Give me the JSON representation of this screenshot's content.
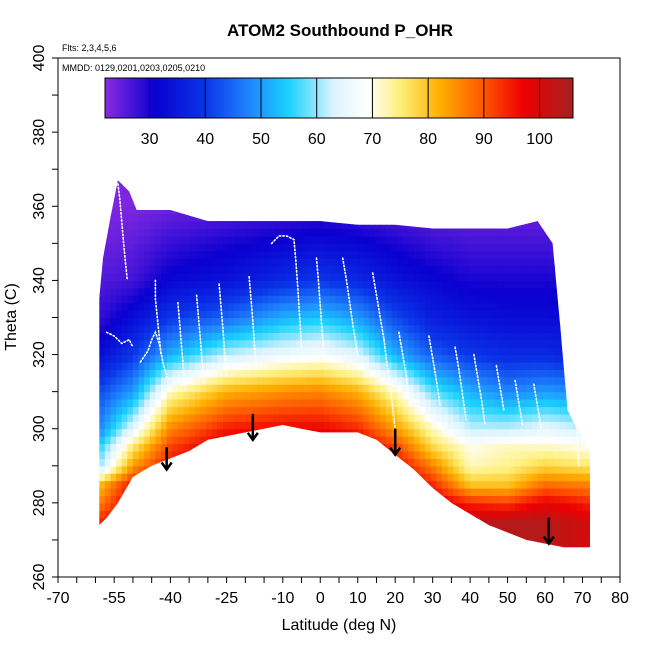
{
  "chart_data": {
    "type": "heatmap",
    "title": "ATOM2 Southbound P_OHR",
    "flights_label": "Flts: 2,3,4,5,6",
    "dates_label": "MMDD: 0129,0201,0203,0205,0210",
    "xlabel": "Latitude (deg N)",
    "ylabel": "Theta (C)",
    "xlim": [
      -70,
      80
    ],
    "ylim": [
      260,
      400
    ],
    "x_tick_labels": [
      -70,
      -55,
      -40,
      -25,
      -10,
      0,
      10,
      20,
      30,
      40,
      50,
      60,
      70,
      80
    ],
    "y_tick_labels": [
      260,
      280,
      300,
      320,
      340,
      360,
      380,
      400
    ],
    "colorbar": {
      "min": 22,
      "max": 106,
      "tick_labels": [
        30,
        40,
        50,
        60,
        70,
        80,
        90,
        100
      ],
      "stops": [
        {
          "value": 22,
          "color": "#8a2be2"
        },
        {
          "value": 31,
          "color": "#0a00d0"
        },
        {
          "value": 40,
          "color": "#0a35e8"
        },
        {
          "value": 48,
          "color": "#1f86ff"
        },
        {
          "value": 55,
          "color": "#1ad2ff"
        },
        {
          "value": 63,
          "color": "#dcf3ff"
        },
        {
          "value": 69,
          "color": "#ffffff"
        },
        {
          "value": 75,
          "color": "#fff07a"
        },
        {
          "value": 82,
          "color": "#ffb000"
        },
        {
          "value": 90,
          "color": "#ff5500"
        },
        {
          "value": 97,
          "color": "#ee0000"
        },
        {
          "value": 106,
          "color": "#a52020"
        }
      ]
    },
    "field": {
      "lat_range": [
        -59,
        72
      ],
      "top_boundary": [
        [
          -59,
          335
        ],
        [
          -58,
          346
        ],
        [
          -56,
          357
        ],
        [
          -54,
          367
        ],
        [
          -51,
          364
        ],
        [
          -49,
          359
        ],
        [
          -40,
          359
        ],
        [
          -30,
          356
        ],
        [
          -20,
          356
        ],
        [
          -10,
          356
        ],
        [
          0,
          356
        ],
        [
          10,
          355
        ],
        [
          20,
          355
        ],
        [
          30,
          354
        ],
        [
          40,
          354
        ],
        [
          50,
          354
        ],
        [
          58,
          356
        ],
        [
          62,
          350
        ],
        [
          64,
          328
        ],
        [
          66,
          305
        ],
        [
          70,
          297
        ],
        [
          72,
          294
        ]
      ],
      "bottom_boundary": [
        [
          -59,
          274
        ],
        [
          -57,
          276
        ],
        [
          -54,
          280
        ],
        [
          -50,
          287
        ],
        [
          -45,
          290
        ],
        [
          -40,
          292
        ],
        [
          -35,
          294
        ],
        [
          -30,
          297
        ],
        [
          -20,
          299
        ],
        [
          -10,
          301
        ],
        [
          -5,
          300
        ],
        [
          0,
          299
        ],
        [
          10,
          299
        ],
        [
          15,
          297
        ],
        [
          20,
          293
        ],
        [
          25,
          289
        ],
        [
          30,
          284
        ],
        [
          35,
          280
        ],
        [
          40,
          277
        ],
        [
          45,
          274
        ],
        [
          50,
          272
        ],
        [
          55,
          270
        ],
        [
          60,
          269
        ],
        [
          65,
          268
        ],
        [
          72,
          268
        ]
      ],
      "profiles": [
        {
          "lat": -59,
          "theta": [
            275,
            280,
            285,
            290,
            295,
            300,
            310,
            320,
            330,
            340,
            350,
            360,
            370
          ],
          "value": [
            94,
            86,
            80,
            60,
            55,
            48,
            42,
            33,
            28,
            26,
            24,
            23,
            23
          ]
        },
        {
          "lat": -50,
          "theta": [
            275,
            280,
            285,
            290,
            295,
            300,
            310,
            320,
            330,
            340,
            350,
            360,
            370
          ],
          "value": [
            100,
            100,
            96,
            84,
            76,
            65,
            50,
            40,
            33,
            27,
            25,
            23,
            23
          ]
        },
        {
          "lat": -40,
          "theta": [
            275,
            280,
            285,
            290,
            295,
            300,
            310,
            320,
            330,
            340,
            350,
            360,
            370
          ],
          "value": [
            104,
            104,
            100,
            96,
            92,
            86,
            72,
            52,
            40,
            32,
            28,
            24,
            23
          ]
        },
        {
          "lat": -25,
          "theta": [
            275,
            280,
            285,
            290,
            295,
            300,
            310,
            320,
            330,
            340,
            350,
            360,
            370
          ],
          "value": [
            104,
            104,
            104,
            102,
            100,
            95,
            82,
            62,
            45,
            34,
            30,
            25,
            23
          ]
        },
        {
          "lat": -10,
          "theta": [
            275,
            280,
            285,
            290,
            295,
            300,
            310,
            320,
            330,
            340,
            350,
            360,
            370
          ],
          "value": [
            104,
            104,
            104,
            104,
            102,
            97,
            85,
            66,
            52,
            38,
            32,
            26,
            23
          ]
        },
        {
          "lat": 0,
          "theta": [
            275,
            280,
            285,
            290,
            295,
            300,
            310,
            320,
            330,
            340,
            350,
            360,
            370
          ],
          "value": [
            104,
            104,
            104,
            104,
            102,
            97,
            86,
            68,
            54,
            40,
            33,
            27,
            23
          ]
        },
        {
          "lat": 10,
          "theta": [
            275,
            280,
            285,
            290,
            295,
            300,
            310,
            320,
            330,
            340,
            350,
            360,
            370
          ],
          "value": [
            104,
            104,
            104,
            103,
            100,
            94,
            82,
            64,
            50,
            38,
            32,
            26,
            23
          ]
        },
        {
          "lat": 20,
          "theta": [
            275,
            280,
            285,
            290,
            295,
            300,
            310,
            320,
            330,
            340,
            350,
            360,
            370
          ],
          "value": [
            104,
            104,
            102,
            98,
            92,
            84,
            72,
            52,
            42,
            34,
            30,
            25,
            23
          ]
        },
        {
          "lat": 30,
          "theta": [
            275,
            280,
            285,
            290,
            295,
            300,
            310,
            320,
            330,
            340,
            350,
            360,
            370
          ],
          "value": [
            104,
            100,
            94,
            86,
            78,
            72,
            58,
            44,
            36,
            32,
            28,
            24,
            23
          ]
        },
        {
          "lat": 40,
          "theta": [
            275,
            280,
            285,
            290,
            295,
            300,
            310,
            320,
            330,
            340,
            350,
            360,
            370
          ],
          "value": [
            102,
            94,
            80,
            72,
            70,
            62,
            52,
            40,
            34,
            30,
            27,
            24,
            23
          ]
        },
        {
          "lat": 50,
          "theta": [
            275,
            280,
            285,
            290,
            295,
            300,
            310,
            320,
            330,
            340,
            350,
            360,
            370
          ],
          "value": [
            104,
            92,
            80,
            74,
            72,
            62,
            48,
            38,
            33,
            30,
            27,
            24,
            23
          ]
        },
        {
          "lat": 60,
          "theta": [
            275,
            280,
            285,
            290,
            295,
            300,
            310,
            320,
            330,
            340,
            350,
            360,
            370
          ],
          "value": [
            104,
            98,
            88,
            78,
            72,
            65,
            50,
            38,
            33,
            30,
            27,
            24,
            23
          ]
        },
        {
          "lat": 72,
          "theta": [
            275,
            280,
            285,
            290,
            295,
            300,
            310,
            320,
            330,
            340,
            350,
            360,
            370
          ],
          "value": [
            100,
            94,
            86,
            76,
            70,
            62,
            48,
            36,
            32,
            29,
            26,
            24,
            23
          ]
        }
      ]
    },
    "flight_tracks": [
      [
        [
          -54,
          366
        ],
        [
          -53.5,
          362
        ],
        [
          -53,
          356
        ],
        [
          -52.5,
          350
        ],
        [
          -52,
          345
        ],
        [
          -51.5,
          340
        ]
      ],
      [
        [
          -57,
          326
        ],
        [
          -55,
          325
        ],
        [
          -53,
          323
        ],
        [
          -51,
          324
        ],
        [
          -50,
          322
        ]
      ],
      [
        [
          -48,
          318
        ],
        [
          -46,
          321
        ],
        [
          -45,
          324
        ],
        [
          -44,
          326
        ],
        [
          -43,
          323
        ],
        [
          -42,
          318
        ],
        [
          -41,
          314
        ]
      ],
      [
        [
          -44,
          340
        ],
        [
          -44,
          335
        ],
        [
          -43.5,
          330
        ],
        [
          -43,
          325
        ],
        [
          -42.5,
          320
        ]
      ],
      [
        [
          -38,
          334
        ],
        [
          -37.5,
          328
        ],
        [
          -37,
          322
        ],
        [
          -36.5,
          316
        ],
        [
          -36,
          310
        ]
      ],
      [
        [
          -33,
          336
        ],
        [
          -32.5,
          330
        ],
        [
          -32,
          324
        ],
        [
          -31.5,
          318
        ],
        [
          -31,
          312
        ]
      ],
      [
        [
          -27,
          339
        ],
        [
          -26.5,
          333
        ],
        [
          -26,
          327
        ],
        [
          -25.5,
          320
        ],
        [
          -25,
          314
        ]
      ],
      [
        [
          -19,
          341
        ],
        [
          -18.5,
          335
        ],
        [
          -18,
          329
        ],
        [
          -17.5,
          322
        ],
        [
          -17,
          316
        ]
      ],
      [
        [
          -13,
          350
        ],
        [
          -11,
          352
        ],
        [
          -9,
          352
        ],
        [
          -7,
          351
        ],
        [
          -6.5,
          345
        ],
        [
          -6,
          338
        ],
        [
          -5.5,
          330
        ],
        [
          -5,
          322
        ]
      ],
      [
        [
          -1,
          346
        ],
        [
          -0.5,
          340
        ],
        [
          0,
          333
        ],
        [
          0.5,
          326
        ],
        [
          1,
          320
        ]
      ],
      [
        [
          6,
          346
        ],
        [
          7,
          340
        ],
        [
          8,
          333
        ],
        [
          9,
          326
        ],
        [
          10,
          320
        ]
      ],
      [
        [
          14,
          342
        ],
        [
          15,
          336
        ],
        [
          16,
          330
        ],
        [
          17,
          324
        ]
      ],
      [
        [
          17,
          324
        ],
        [
          18,
          316
        ],
        [
          19,
          308
        ],
        [
          20,
          300
        ]
      ],
      [
        [
          21,
          326
        ],
        [
          22,
          320
        ],
        [
          23,
          314
        ],
        [
          24,
          306
        ]
      ],
      [
        [
          29,
          325
        ],
        [
          30,
          319
        ],
        [
          31,
          313
        ],
        [
          32,
          306
        ]
      ],
      [
        [
          36,
          322
        ],
        [
          37,
          316
        ],
        [
          38,
          309
        ],
        [
          39,
          302
        ]
      ],
      [
        [
          41,
          320
        ],
        [
          42,
          314
        ],
        [
          43,
          308
        ],
        [
          44,
          301
        ]
      ],
      [
        [
          47,
          317
        ],
        [
          48,
          311
        ],
        [
          49,
          305
        ]
      ],
      [
        [
          52,
          313
        ],
        [
          53,
          307
        ],
        [
          54,
          301
        ]
      ],
      [
        [
          57,
          312
        ],
        [
          58,
          306
        ],
        [
          59,
          300
        ]
      ],
      [
        [
          62,
          355
        ],
        [
          64,
          352
        ],
        [
          66,
          349
        ],
        [
          68,
          350
        ],
        [
          69,
          356
        ]
      ],
      [
        [
          67,
          330
        ],
        [
          67.5,
          320
        ],
        [
          68,
          310
        ],
        [
          68.5,
          300
        ],
        [
          69,
          290
        ]
      ]
    ],
    "arrows": [
      {
        "lat": -41,
        "from": 295,
        "to": 289
      },
      {
        "lat": -18,
        "from": 304,
        "to": 297
      },
      {
        "lat": 20,
        "from": 300,
        "to": 293
      },
      {
        "lat": 61,
        "from": 276,
        "to": 269
      }
    ],
    "grid": false,
    "legend": "colorbar-top"
  }
}
